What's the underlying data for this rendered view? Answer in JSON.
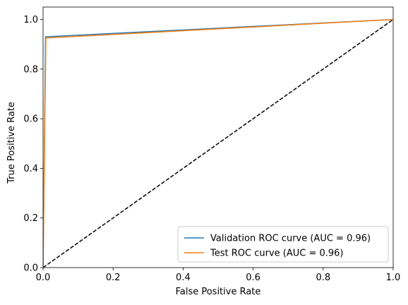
{
  "chart_data": {
    "type": "line",
    "title": "",
    "xlabel": "False Positive Rate",
    "ylabel": "True Positive Rate",
    "xlim": [
      0.0,
      1.0
    ],
    "ylim": [
      0.0,
      1.05
    ],
    "xticks": [
      0.0,
      0.2,
      0.4,
      0.6,
      0.8,
      1.0
    ],
    "yticks": [
      0.0,
      0.2,
      0.4,
      0.6,
      0.8,
      1.0
    ],
    "xtick_labels": [
      "0.0",
      "0.2",
      "0.4",
      "0.6",
      "0.8",
      "1.0"
    ],
    "ytick_labels": [
      "0.0",
      "0.2",
      "0.4",
      "0.6",
      "0.8",
      "1.0"
    ],
    "grid": false,
    "legend_position": "lower-right",
    "series": [
      {
        "name": "Validation ROC curve (AUC = 0.96)",
        "color": "#1f77b4",
        "style": "solid",
        "x": [
          0.0,
          0.007,
          1.0
        ],
        "y": [
          0.0,
          0.93,
          1.0
        ]
      },
      {
        "name": "Test ROC curve (AUC = 0.96)",
        "color": "#ff7f0e",
        "style": "solid",
        "x": [
          0.0,
          0.008,
          1.0
        ],
        "y": [
          0.0,
          0.925,
          1.0
        ]
      }
    ],
    "reference_line": {
      "color": "#000000",
      "style": "dashed",
      "x": [
        0.0,
        1.0
      ],
      "y": [
        0.0,
        1.0
      ]
    }
  }
}
